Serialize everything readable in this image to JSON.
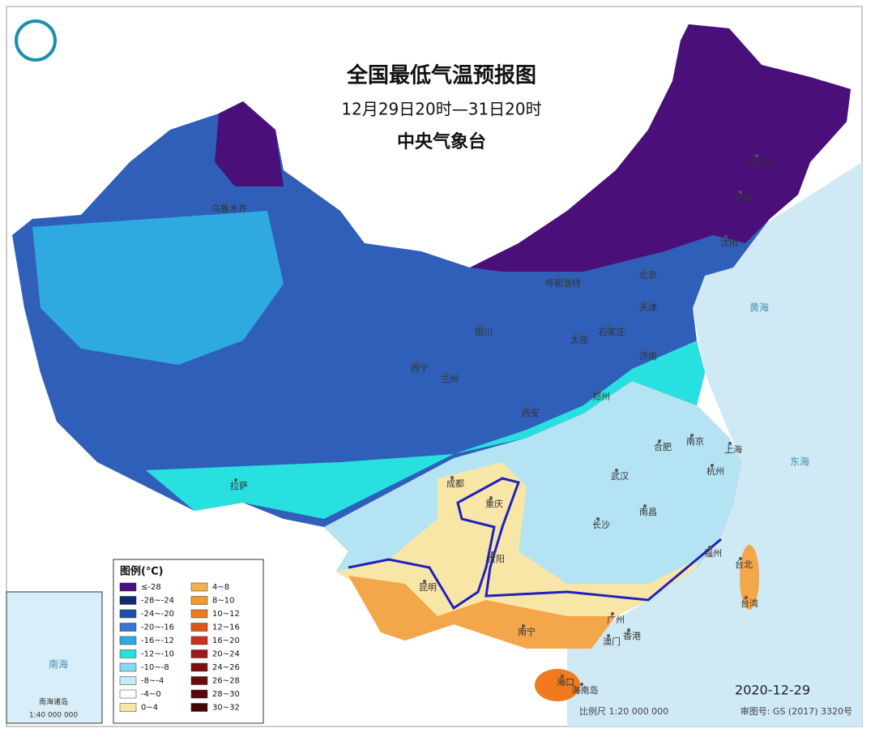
{
  "header": {
    "title": "全国最低气温预报图",
    "subtitle": "12月29日20时—31日20时",
    "agency": "中央气象台"
  },
  "legend": {
    "title": "图例(℃)",
    "items": [
      {
        "label": "≤-28",
        "color": "#4b0f7a"
      },
      {
        "label": "-28~-24",
        "color": "#0d2a72"
      },
      {
        "label": "-24~-20",
        "color": "#1f4ea6"
      },
      {
        "label": "-20~-16",
        "color": "#3f74cc"
      },
      {
        "label": "-16~-12",
        "color": "#2eaae0"
      },
      {
        "label": "-12~-10",
        "color": "#28e0e0"
      },
      {
        "label": "-10~-8",
        "color": "#8ad8f2"
      },
      {
        "label": "-8~-4",
        "color": "#c4ecf8"
      },
      {
        "label": "-4~0",
        "color": "#ffffff"
      },
      {
        "label": "0~4",
        "color": "#f8e6a6"
      },
      {
        "label": "4~8",
        "color": "#f3b24d"
      },
      {
        "label": "8~10",
        "color": "#f39a2a"
      },
      {
        "label": "10~12",
        "color": "#f07a1c"
      },
      {
        "label": "12~16",
        "color": "#e0551a"
      },
      {
        "label": "16~20",
        "color": "#c8321a"
      },
      {
        "label": "20~24",
        "color": "#a01818"
      },
      {
        "label": "24~26",
        "color": "#7d1010"
      },
      {
        "label": "26~28",
        "color": "#6a0c0c"
      },
      {
        "label": "28~30",
        "color": "#580808"
      },
      {
        "label": "30~32",
        "color": "#460404"
      }
    ]
  },
  "cities": [
    "乌鲁木齐",
    "哈尔滨",
    "长春",
    "沈阳",
    "呼和浩特",
    "北京",
    "天津",
    "石家庄",
    "太原",
    "银川",
    "西宁",
    "兰州",
    "济南",
    "郑州",
    "西安",
    "合肥",
    "南京",
    "上海",
    "成都",
    "武汉",
    "杭州",
    "重庆",
    "南昌",
    "长沙",
    "拉萨",
    "贵阳",
    "福州",
    "台北",
    "台湾",
    "昆明",
    "广州",
    "南宁",
    "香港",
    "澳门",
    "海口",
    "海南岛"
  ],
  "seas": [
    "黄海",
    "东海",
    "南海"
  ],
  "inset": {
    "title": "南海诸岛",
    "scale": "1:40 000 000"
  },
  "footer": {
    "date": "2020-12-29",
    "scale": "比例尺 1:20 000 000",
    "approval": "审图号: GS (2017) 3320号"
  }
}
